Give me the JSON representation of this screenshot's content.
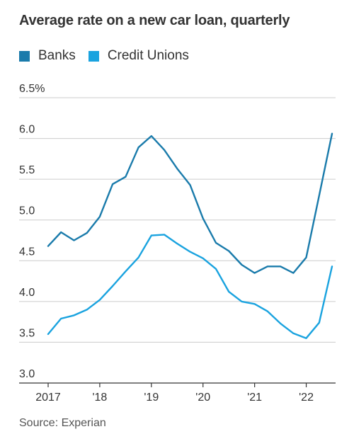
{
  "title": "Average rate on a new car loan, quarterly",
  "source": "Source: Experian",
  "colors": {
    "banks": "#1a7bab",
    "credit_unions": "#1aa3df",
    "grid": "#cccccc",
    "axis": "#333333"
  },
  "chart_data": {
    "type": "line",
    "title": "Average rate on a new car loan, quarterly",
    "xlabel": "",
    "ylabel": "",
    "ylim": [
      3.0,
      6.5
    ],
    "y_ticks": [
      "6.5%",
      "6.0",
      "5.5",
      "5.0",
      "4.5",
      "4.0",
      "3.5",
      "3.0"
    ],
    "y_tick_values": [
      6.5,
      6.0,
      5.5,
      5.0,
      4.5,
      4.0,
      3.5,
      3.0
    ],
    "x_tick_labels": [
      "2017",
      "'18",
      "'19",
      "'20",
      "'21",
      "'22"
    ],
    "x_tick_years": [
      2017,
      2018,
      2019,
      2020,
      2021,
      2022
    ],
    "x": [
      "2017 Q1",
      "2017 Q2",
      "2017 Q3",
      "2017 Q4",
      "2018 Q1",
      "2018 Q2",
      "2018 Q3",
      "2018 Q4",
      "2019 Q1",
      "2019 Q2",
      "2019 Q3",
      "2019 Q4",
      "2020 Q1",
      "2020 Q2",
      "2020 Q3",
      "2020 Q4",
      "2021 Q1",
      "2021 Q2",
      "2021 Q3",
      "2021 Q4",
      "2022 Q1",
      "2022 Q2",
      "2022 Q3"
    ],
    "grid": true,
    "legend_position": "top-left",
    "series": [
      {
        "name": "Banks",
        "color": "#1a7bab",
        "values": [
          4.68,
          4.85,
          4.75,
          4.84,
          5.04,
          5.44,
          5.53,
          5.89,
          6.03,
          5.86,
          5.63,
          5.43,
          5.02,
          4.72,
          4.62,
          4.45,
          4.35,
          4.43,
          4.43,
          4.35,
          4.54,
          5.3,
          6.06
        ]
      },
      {
        "name": "Credit Unions",
        "color": "#1aa3df",
        "values": [
          3.6,
          3.79,
          3.83,
          3.9,
          4.02,
          4.19,
          4.37,
          4.54,
          4.81,
          4.82,
          4.71,
          4.61,
          4.53,
          4.4,
          4.12,
          4.0,
          3.97,
          3.88,
          3.73,
          3.61,
          3.55,
          3.74,
          4.43
        ]
      }
    ]
  }
}
